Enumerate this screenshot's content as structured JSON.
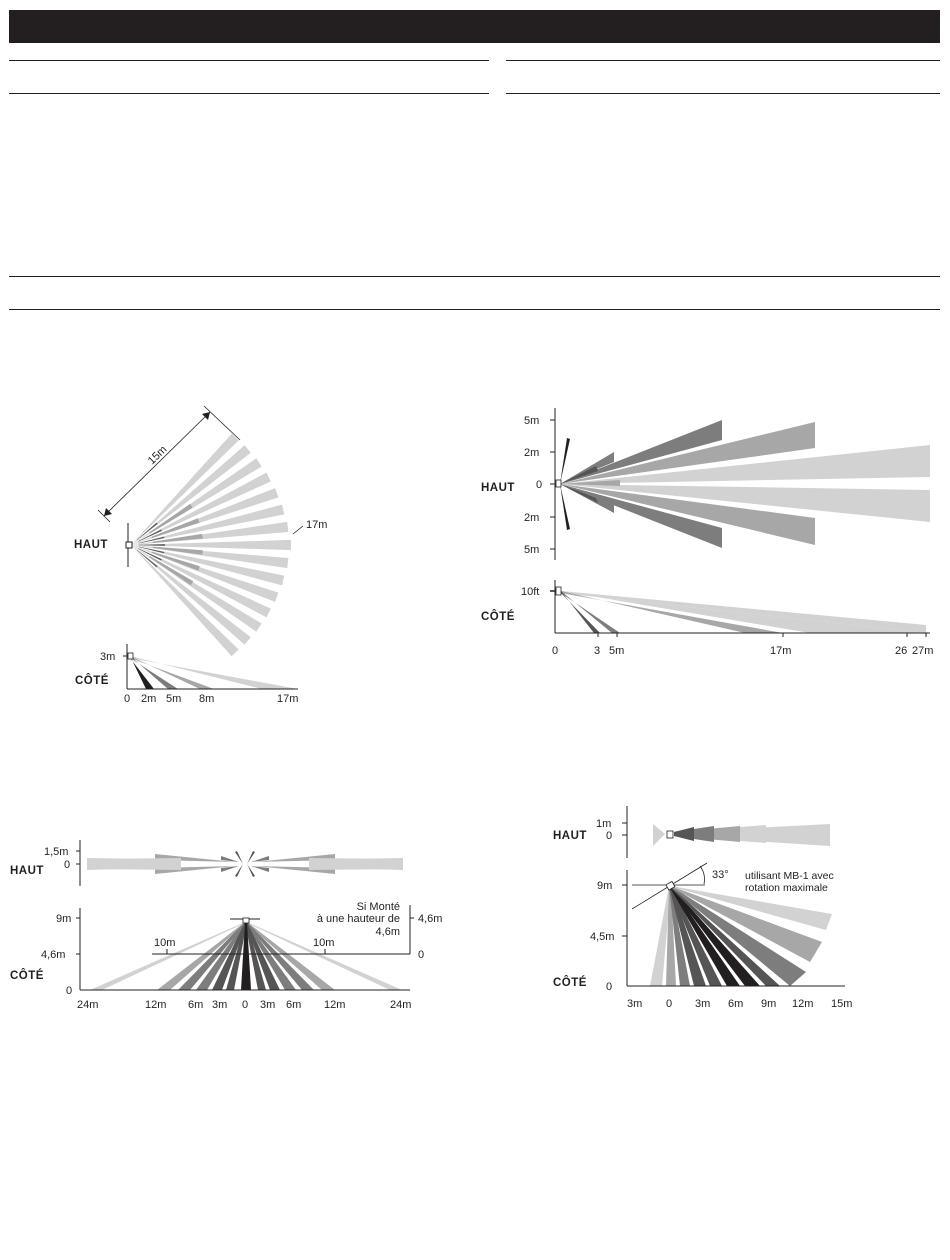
{
  "colors": {
    "ink": "#231f20",
    "light": "#d2d2d2",
    "mid": "#a7a7a7",
    "darkmid": "#7d7d7d",
    "dark": "#555555",
    "black": "#231f20"
  },
  "diagram1": {
    "top_label": "HAUT",
    "side_label": "CÔTÉ",
    "range_label": "15m",
    "reach_label": "17m",
    "side_height": "3m",
    "side_ticks": [
      "0",
      "2m",
      "5m",
      "8m",
      "17m"
    ]
  },
  "diagram2": {
    "top_label": "HAUT",
    "side_label": "CÔTÉ",
    "y_ticks": [
      "5m",
      "2m",
      "0",
      "2m",
      "5m"
    ],
    "side_height": "10ft",
    "x_ticks": [
      "0",
      "3",
      "5m",
      "17m",
      "26",
      "27m"
    ]
  },
  "diagram3": {
    "top_label": "HAUT",
    "side_label": "CÔTÉ",
    "top_ticks": [
      "1,5m",
      "0"
    ],
    "side_y_ticks": [
      "9m",
      "4,6m",
      "0"
    ],
    "mount_note": [
      "Si Monté",
      "à une hauteur de",
      "4,6m"
    ],
    "right_ticks": [
      "4,6m",
      "0"
    ],
    "mid_labels": [
      "10m",
      "10m"
    ],
    "x_ticks": [
      "24m",
      "12m",
      "6m",
      "3m",
      "0",
      "3m",
      "6m",
      "12m",
      "24m"
    ]
  },
  "diagram4": {
    "top_label": "HAUT",
    "side_label": "CÔTÉ",
    "top_ticks": [
      "1m",
      "0"
    ],
    "angle_label": "33°",
    "note": [
      "utilisant MB-1 avec",
      "rotation maximale"
    ],
    "side_y_ticks": [
      "9m",
      "4,5m",
      "0"
    ],
    "x_ticks": [
      "3m",
      "0",
      "3m",
      "6m",
      "9m",
      "12m",
      "15m"
    ]
  }
}
